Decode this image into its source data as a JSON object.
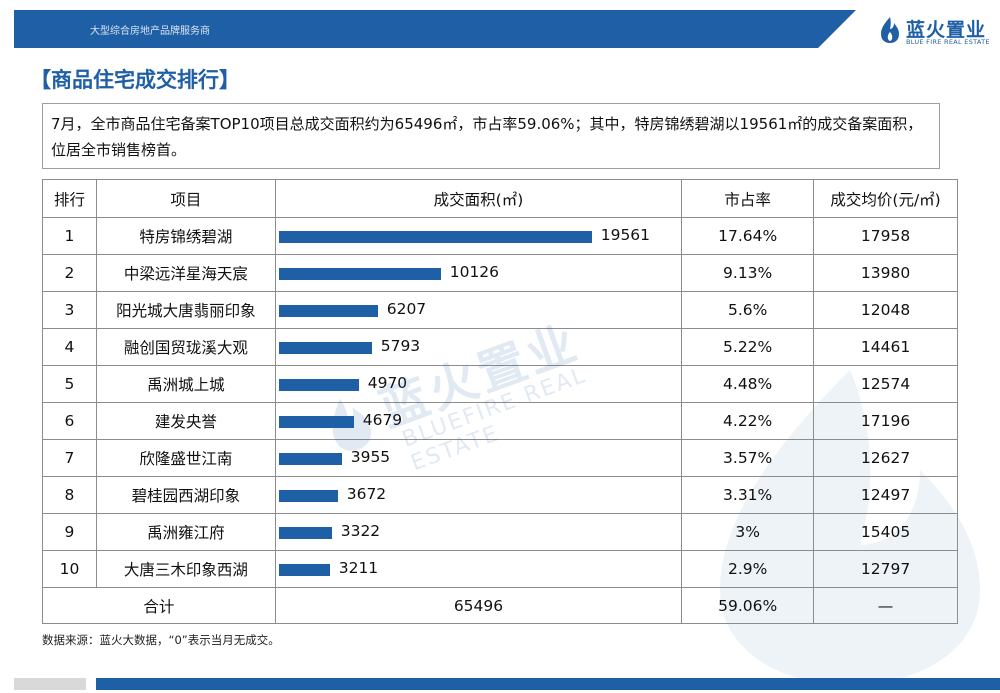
{
  "header": {
    "tagline": "大型综合房地产品牌服务商",
    "logo_cn": "蓝火置业",
    "logo_en": "BLUE FIRE REAL ESTATE"
  },
  "page_title": "【商品住宅成交排行】",
  "summary": "7月，全市商品住宅备案TOP10项目总成交面积约为65496㎡，市占率59.06%；其中，特房锦绣碧湖以19561㎡的成交备案面积，位居全市销售榜首。",
  "watermark": {
    "cn": "蓝火置业",
    "en": "BLUEFIRE REAL ESTATE"
  },
  "table": {
    "headers": [
      "排行",
      "项目",
      "成交面积(㎡)",
      "市占率",
      "成交均价(元/㎡)"
    ],
    "rows": [
      {
        "rank": "1",
        "name": "特房锦绣碧湖",
        "area": 19561,
        "share": "17.64%",
        "price": "17958"
      },
      {
        "rank": "2",
        "name": "中梁远洋星海天宸",
        "area": 10126,
        "share": "9.13%",
        "price": "13980"
      },
      {
        "rank": "3",
        "name": "阳光城大唐翡丽印象",
        "area": 6207,
        "share": "5.6%",
        "price": "12048"
      },
      {
        "rank": "4",
        "name": "融创国贸珑溪大观",
        "area": 5793,
        "share": "5.22%",
        "price": "14461"
      },
      {
        "rank": "5",
        "name": "禹洲城上城",
        "area": 4970,
        "share": "4.48%",
        "price": "12574"
      },
      {
        "rank": "6",
        "name": "建发央誉",
        "area": 4679,
        "share": "4.22%",
        "price": "17196"
      },
      {
        "rank": "7",
        "name": "欣隆盛世江南",
        "area": 3955,
        "share": "3.57%",
        "price": "12627"
      },
      {
        "rank": "8",
        "name": "碧桂园西湖印象",
        "area": 3672,
        "share": "3.31%",
        "price": "12497"
      },
      {
        "rank": "9",
        "name": "禹洲雍江府",
        "area": 3322,
        "share": "3%",
        "price": "15405"
      },
      {
        "rank": "10",
        "name": "大唐三木印象西湖",
        "area": 3211,
        "share": "2.9%",
        "price": "12797"
      }
    ],
    "total": {
      "label": "合计",
      "area": "65496",
      "share": "59.06%",
      "price": "—"
    }
  },
  "chart_data": {
    "type": "bar",
    "categories": [
      "特房锦绣碧湖",
      "中梁远洋星海天宸",
      "阳光城大唐翡丽印象",
      "融创国贸珑溪大观",
      "禹洲城上城",
      "建发央誉",
      "欣隆盛世江南",
      "碧桂园西湖印象",
      "禹洲雍江府",
      "大唐三木印象西湖"
    ],
    "values": [
      19561,
      10126,
      6207,
      5793,
      4970,
      4679,
      3955,
      3672,
      3322,
      3211
    ],
    "orientation": "horizontal",
    "color": "#1f5fa5"
  },
  "source_note": "数据来源：蓝火大数据，“0”表示当月无成交。",
  "colors": {
    "brand": "#1f5fa5"
  }
}
